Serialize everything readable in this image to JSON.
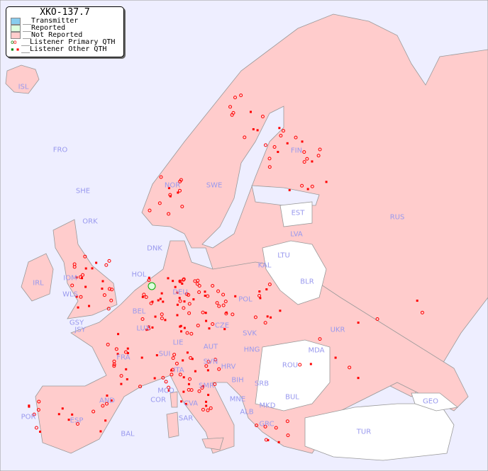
{
  "title": "XKO-137.7",
  "legend": [
    {
      "label": "__Transmitter",
      "color": "#88ccee"
    },
    {
      "label": "__Reported",
      "color": "#ddffdd"
    },
    {
      "label": "__Not Reported",
      "color": "#ffcccc"
    },
    {
      "label": "__Listener Primary QTH",
      "marker": "circle"
    },
    {
      "label": "__Listener Other QTH",
      "marker": "square"
    }
  ],
  "colors": {
    "sea": "#eeeeff",
    "not_reported": "#ffcccc",
    "no_data": "#ffffff",
    "label": "#9999ee",
    "marker": "#ff0000",
    "reported": "#ddffdd"
  },
  "countries": [
    "ISL",
    "FRO",
    "SHE",
    "ORK",
    "NOR",
    "SWE",
    "FIN",
    "EST",
    "RUS",
    "LVA",
    "LTU",
    "KAL",
    "BLR",
    "DNK",
    "IRL",
    "IOM",
    "WLS",
    "HOL",
    "DEU",
    "POL",
    "UKR",
    "GSY",
    "JSY",
    "BEL",
    "LUX",
    "CZE",
    "SVK",
    "FRA",
    "SUI",
    "LIE",
    "AUT",
    "HNG",
    "MDA",
    "ROU",
    "SVN",
    "HRV",
    "ITA",
    "BIH",
    "SRB",
    "MCO",
    "COR",
    "CVA",
    "SMR",
    "MNE",
    "BUL",
    "AND",
    "POR",
    "ESP",
    "SAR",
    "ALB",
    "MKD",
    "GEO",
    "BAL",
    "GRC",
    "TUR"
  ]
}
